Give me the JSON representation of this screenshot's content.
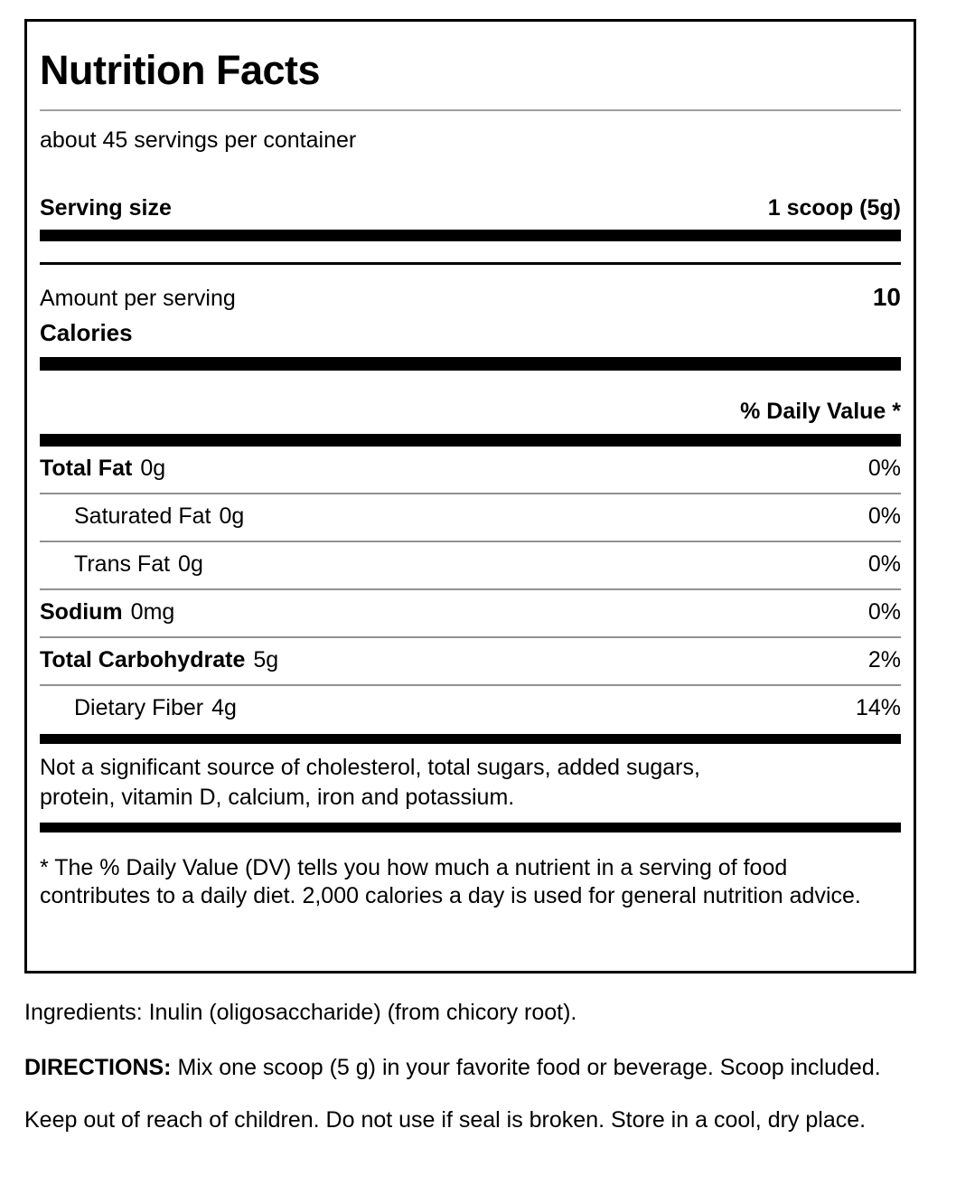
{
  "colors": {
    "text": "#000000",
    "thick_bar": "#000000",
    "row_separator": "#919191",
    "title_rule": "#a0a0a0",
    "background": "#ffffff"
  },
  "label": {
    "title": "Nutrition Facts",
    "servings_per_container": "about 45 servings per container",
    "serving_size": {
      "label": "Serving size",
      "value": "1 scoop (5g)"
    },
    "calories": {
      "label": "Amount per serving",
      "name": "Calories",
      "value": "10"
    },
    "daily_value_header": "% Daily Value *",
    "rows": [
      {
        "name": "Total Fat",
        "amount": "0g",
        "dv": "0%"
      },
      {
        "name": "Saturated Fat",
        "amount": "0g",
        "dv": "0%"
      },
      {
        "name": "Trans Fat",
        "amount": "0g",
        "dv": "0%"
      },
      {
        "name": "Sodium",
        "amount": "0mg",
        "dv": "0%"
      },
      {
        "name": "Total Carbohydrate",
        "amount": "5g",
        "dv": "2%"
      },
      {
        "name": "Dietary Fiber",
        "amount": "4g",
        "dv": "14%"
      }
    ],
    "insignificant_note": "Not a significant source of cholesterol, total sugars, added sugars, protein, vitamin D, calcium, iron and potassium.",
    "footnote": "* The % Daily Value (DV) tells you how much a nutrient in a serving of food contributes to a daily diet. 2,000 calories a day is used for general nutrition advice."
  },
  "details": {
    "ingredients": "Ingredients: Inulin (oligosaccharide) (from chicory root).",
    "directions_label": "DIRECTIONS:",
    "directions_text": "Mix one scoop (5 g) in your favorite food or beverage. Scoop included.",
    "storage": "Keep out of reach of children. Do not use if seal is broken. Store in a cool, dry place."
  }
}
